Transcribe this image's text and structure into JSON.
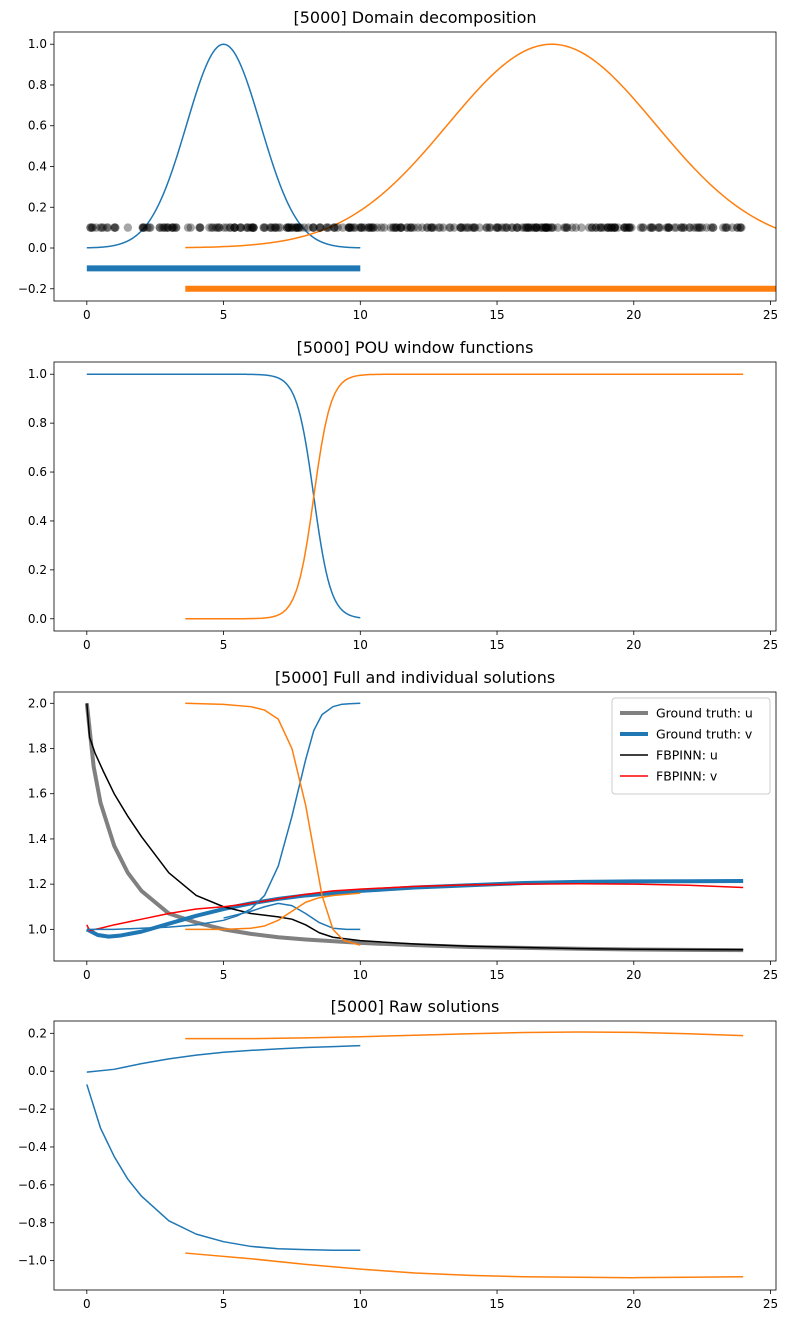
{
  "chart_data": [
    {
      "type": "line",
      "title": "[5000] Domain decomposition",
      "xlabel": "",
      "ylabel": "",
      "xlim": [
        -1.2,
        25.2
      ],
      "ylim": [
        -0.26,
        1.06
      ],
      "xticks": [
        0,
        5,
        10,
        15,
        20,
        25
      ],
      "yticks": [
        -0.2,
        0.0,
        0.2,
        0.4,
        0.6,
        0.8,
        1.0
      ],
      "tick_labels": {
        "x": [
          "0",
          "5",
          "10",
          "15",
          "20",
          "25"
        ],
        "y": [
          "−0.2",
          "0.0",
          "0.2",
          "0.4",
          "0.6",
          "0.8",
          "1.0"
        ]
      },
      "grid": false,
      "legend": null,
      "series": [
        {
          "kind": "gaussian",
          "color": "#1f77b4",
          "x_range": [
            0,
            10
          ],
          "center": 5,
          "sigma": 1.35,
          "width": 1.5
        },
        {
          "kind": "gaussian",
          "color": "#ff7f0e",
          "x_range": [
            3.6,
            25.2
          ],
          "center": 17,
          "sigma": 3.8,
          "width": 1.5
        },
        {
          "kind": "hbar",
          "color": "#1f77b4",
          "x_range": [
            0,
            10
          ],
          "y": -0.1,
          "width": 6
        },
        {
          "kind": "hbar",
          "color": "#ff7f0e",
          "x_range": [
            3.6,
            25.2
          ],
          "y": -0.2,
          "width": 6
        },
        {
          "kind": "points",
          "color": "#000000",
          "x_range": [
            0,
            24
          ],
          "y": 0.1,
          "count": 300,
          "alpha": 0.35
        }
      ]
    },
    {
      "type": "line",
      "title": "[5000] POU window functions",
      "xlabel": "",
      "ylabel": "",
      "xlim": [
        -1.2,
        25.2
      ],
      "ylim": [
        -0.05,
        1.05
      ],
      "xticks": [
        0,
        5,
        10,
        15,
        20,
        25
      ],
      "yticks": [
        0.0,
        0.2,
        0.4,
        0.6,
        0.8,
        1.0
      ],
      "tick_labels": {
        "x": [
          "0",
          "5",
          "10",
          "15",
          "20",
          "25"
        ],
        "y": [
          "0.0",
          "0.2",
          "0.4",
          "0.6",
          "0.8",
          "1.0"
        ]
      },
      "grid": false,
      "legend": null,
      "series": [
        {
          "kind": "sigmoid_down",
          "color": "#1f77b4",
          "x_range": [
            0,
            10
          ],
          "mid": 8.3,
          "k": 3.2,
          "width": 1.5
        },
        {
          "kind": "sigmoid_up",
          "color": "#ff7f0e",
          "x_range": [
            3.6,
            24
          ],
          "mid": 8.3,
          "k": 3.2,
          "width": 1.5
        }
      ]
    },
    {
      "type": "line",
      "title": "[5000] Full and individual solutions",
      "xlabel": "",
      "ylabel": "",
      "xlim": [
        -1.2,
        25.2
      ],
      "ylim": [
        0.86,
        2.05
      ],
      "xticks": [
        0,
        5,
        10,
        15,
        20,
        25
      ],
      "yticks": [
        1.0,
        1.2,
        1.4,
        1.6,
        1.8,
        2.0
      ],
      "tick_labels": {
        "x": [
          "0",
          "5",
          "10",
          "15",
          "20",
          "25"
        ],
        "y": [
          "1.0",
          "1.2",
          "1.4",
          "1.6",
          "1.8",
          "2.0"
        ]
      },
      "grid": false,
      "legend": {
        "placement": "top-right"
      },
      "series": [
        {
          "name": "Ground truth: u",
          "legend": true,
          "color": "#808080",
          "width": 4,
          "x": [
            0,
            0.25,
            0.5,
            1,
            1.5,
            2,
            3,
            4,
            5,
            6,
            7,
            8,
            10,
            12,
            14,
            16,
            18,
            20,
            22,
            24
          ],
          "y": [
            2.0,
            1.72,
            1.56,
            1.37,
            1.25,
            1.17,
            1.07,
            1.03,
            1.0,
            0.98,
            0.965,
            0.955,
            0.94,
            0.93,
            0.922,
            0.918,
            0.914,
            0.911,
            0.909,
            0.908
          ]
        },
        {
          "name": "Ground truth: v",
          "legend": true,
          "color": "#1f77b4",
          "width": 4,
          "x": [
            0,
            0.4,
            0.8,
            1.2,
            2,
            3,
            4,
            5,
            6,
            7,
            8,
            9,
            10,
            12,
            14,
            16,
            18,
            20,
            22,
            24
          ],
          "y": [
            1.0,
            0.975,
            0.968,
            0.972,
            0.99,
            1.025,
            1.06,
            1.09,
            1.115,
            1.135,
            1.15,
            1.16,
            1.17,
            1.185,
            1.195,
            1.205,
            1.21,
            1.212,
            1.213,
            1.214
          ]
        },
        {
          "name": "FBPINN: u",
          "legend": true,
          "color": "#000000",
          "width": 1.5,
          "x": [
            0,
            0.1,
            0.3,
            0.6,
            1,
            1.5,
            2,
            3,
            4,
            5,
            6,
            7,
            7.5,
            8,
            8.5,
            9,
            10,
            12,
            14,
            16,
            18,
            20,
            22,
            24
          ],
          "y": [
            2.0,
            1.85,
            1.78,
            1.7,
            1.6,
            1.5,
            1.41,
            1.25,
            1.15,
            1.1,
            1.07,
            1.055,
            1.045,
            1.02,
            0.985,
            0.965,
            0.95,
            0.935,
            0.925,
            0.92,
            0.915,
            0.912,
            0.911,
            0.91
          ]
        },
        {
          "name": "FBPINN: v",
          "legend": true,
          "color": "#ff0000",
          "width": 1.5,
          "x": [
            0,
            0.1,
            0.5,
            1,
            2,
            3,
            4,
            5,
            6,
            7,
            8,
            9,
            10,
            12,
            14,
            16,
            18,
            20,
            22,
            24
          ],
          "y": [
            1.02,
            0.995,
            1.005,
            1.02,
            1.045,
            1.07,
            1.09,
            1.1,
            1.115,
            1.135,
            1.155,
            1.17,
            1.178,
            1.19,
            1.197,
            1.2,
            1.202,
            1.2,
            1.195,
            1.185
          ]
        },
        {
          "legend": false,
          "color": "#1f77b4",
          "width": 1.5,
          "x": [
            0,
            1,
            2,
            3,
            4,
            5,
            5.5,
            6,
            6.5,
            7,
            7.5,
            8,
            8.3,
            8.6,
            9,
            9.3,
            9.6,
            10
          ],
          "y": [
            1.0,
            1.0,
            1.005,
            1.01,
            1.02,
            1.04,
            1.06,
            1.09,
            1.15,
            1.28,
            1.5,
            1.75,
            1.88,
            1.95,
            1.985,
            1.995,
            1.998,
            2.0
          ]
        },
        {
          "legend": false,
          "color": "#1f77b4",
          "width": 1.5,
          "x": [
            5,
            6,
            6.5,
            7,
            7.5,
            8,
            8.5,
            9,
            9.5,
            10
          ],
          "y": [
            1.05,
            1.08,
            1.1,
            1.115,
            1.105,
            1.07,
            1.03,
            1.005,
            1.0,
            1.0
          ]
        },
        {
          "legend": false,
          "color": "#ff7f0e",
          "width": 1.5,
          "x": [
            3.6,
            5,
            6,
            6.5,
            7,
            7.5,
            8,
            8.3,
            8.6,
            9,
            9.4,
            10
          ],
          "y": [
            2.0,
            1.995,
            1.985,
            1.97,
            1.93,
            1.8,
            1.55,
            1.35,
            1.15,
            1.0,
            0.95,
            0.93
          ]
        },
        {
          "legend": false,
          "color": "#ff7f0e",
          "width": 1.5,
          "x": [
            3.6,
            5,
            6,
            6.5,
            7,
            7.5,
            8,
            8.5,
            9,
            10
          ],
          "y": [
            1.0,
            1.0,
            1.005,
            1.015,
            1.04,
            1.08,
            1.12,
            1.14,
            1.15,
            1.16
          ]
        }
      ]
    },
    {
      "type": "line",
      "title": "[5000] Raw solutions",
      "xlabel": "",
      "ylabel": "",
      "xlim": [
        -1.2,
        25.2
      ],
      "ylim": [
        -1.155,
        0.265
      ],
      "xticks": [
        0,
        5,
        10,
        15,
        20,
        25
      ],
      "yticks": [
        -1.0,
        -0.8,
        -0.6,
        -0.4,
        -0.2,
        0.0,
        0.2
      ],
      "tick_labels": {
        "x": [
          "0",
          "5",
          "10",
          "15",
          "20",
          "25"
        ],
        "y": [
          "−1.0",
          "−0.8",
          "−0.6",
          "−0.4",
          "−0.2",
          "0.0",
          "0.2"
        ]
      },
      "grid": false,
      "legend": null,
      "series": [
        {
          "color": "#1f77b4",
          "width": 1.5,
          "x": [
            0,
            1,
            2,
            3,
            4,
            5,
            6,
            7,
            8,
            9,
            10
          ],
          "y": [
            -0.005,
            0.01,
            0.04,
            0.065,
            0.085,
            0.1,
            0.11,
            0.118,
            0.125,
            0.13,
            0.135
          ]
        },
        {
          "color": "#1f77b4",
          "width": 1.5,
          "x": [
            0,
            0.5,
            1,
            1.5,
            2,
            3,
            4,
            5,
            6,
            7,
            8,
            9,
            10
          ],
          "y": [
            -0.07,
            -0.3,
            -0.45,
            -0.57,
            -0.66,
            -0.79,
            -0.86,
            -0.9,
            -0.925,
            -0.937,
            -0.942,
            -0.945,
            -0.945
          ]
        },
        {
          "color": "#ff7f0e",
          "width": 1.5,
          "x": [
            3.6,
            6,
            8,
            10,
            12,
            14,
            16,
            18,
            20,
            22,
            24
          ],
          "y": [
            0.172,
            0.172,
            0.176,
            0.182,
            0.19,
            0.198,
            0.204,
            0.207,
            0.205,
            0.198,
            0.188
          ]
        },
        {
          "color": "#ff7f0e",
          "width": 1.5,
          "x": [
            3.6,
            6,
            8,
            10,
            12,
            14,
            16,
            18,
            20,
            22,
            24
          ],
          "y": [
            -0.96,
            -0.99,
            -1.02,
            -1.045,
            -1.065,
            -1.078,
            -1.085,
            -1.088,
            -1.09,
            -1.088,
            -1.085
          ]
        }
      ]
    }
  ]
}
